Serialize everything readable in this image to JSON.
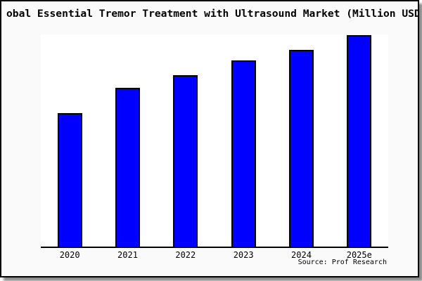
{
  "page": {
    "background": "#ffffff"
  },
  "figure": {
    "background": "#fafafa",
    "border_color": "#000000",
    "shadow_color": "rgba(0,0,0,0.45)"
  },
  "chart_data": {
    "type": "bar",
    "title": "obal Essential Tremor Treatment with Ultrasound Market (Million USD",
    "title_clipped_at_edges": true,
    "categories": [
      "2020",
      "2021",
      "2022",
      "2023",
      "2024",
      "2025e"
    ],
    "values": [
      63,
      75,
      81,
      88,
      93,
      100
    ],
    "value_basis": "relative bar height as percent of tallest bar; no y-axis tick values are shown in the image",
    "bar_color": "#0000ff",
    "bar_border_color": "#000000",
    "xlabel": "",
    "ylabel": "",
    "grid": false,
    "legend": false,
    "source": "Source: Prof Research"
  }
}
